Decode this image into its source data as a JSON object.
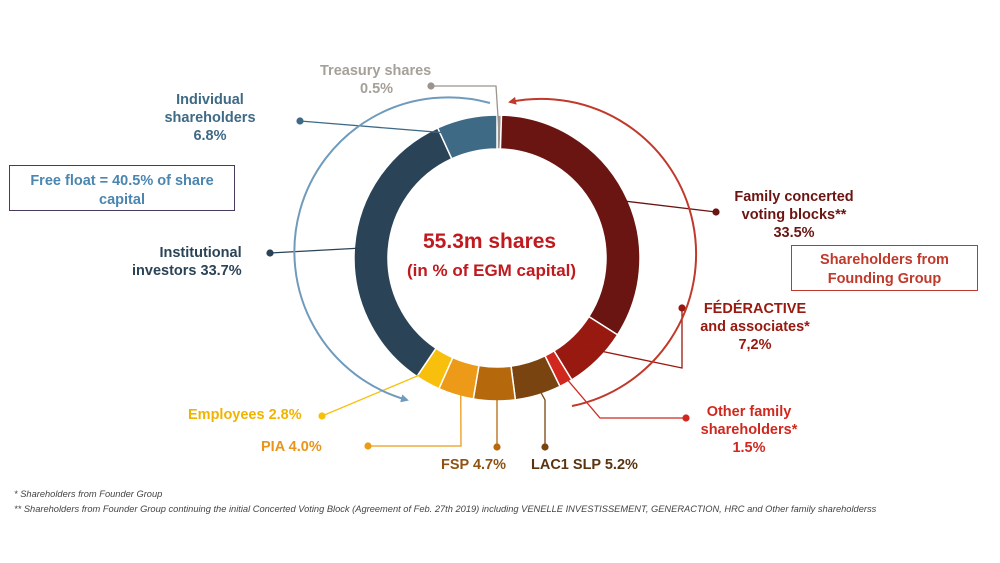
{
  "chart_data": {
    "type": "donut",
    "center_text": [
      "55.3m shares",
      "(in % of EGM capital)"
    ],
    "unit": "%",
    "slices": [
      {
        "key": "treasury",
        "label": "Treasury shares",
        "display": "0.5%",
        "value": 0.5,
        "color": "#9a948c"
      },
      {
        "key": "family_blocks",
        "label": "Family concerted voting blocks**",
        "display": "33.5%",
        "value": 33.5,
        "color": "#6b1512"
      },
      {
        "key": "federactive",
        "label": "FÉDÉRACTIVE and associates*",
        "display": "7,2%",
        "value": 7.2,
        "color": "#97190f"
      },
      {
        "key": "other_family",
        "label": "Other family shareholders*",
        "display": "1.5%",
        "value": 1.5,
        "color": "#d0281e"
      },
      {
        "key": "lac1",
        "label": "LAC1 SLP",
        "display": "5.2%",
        "value": 5.2,
        "color": "#7a4410"
      },
      {
        "key": "fsp",
        "label": "FSP",
        "display": "4.7%",
        "value": 4.7,
        "color": "#b6690c"
      },
      {
        "key": "pia",
        "label": "PIA",
        "display": "4.0%",
        "value": 4.0,
        "color": "#ec9a18"
      },
      {
        "key": "employees",
        "label": "Employees",
        "display": "2.8%",
        "value": 2.8,
        "color": "#f8bf0c"
      },
      {
        "key": "institutional",
        "label": "Institutional investors",
        "display": "33.7%",
        "value": 33.7,
        "color": "#2b4357"
      },
      {
        "key": "individual",
        "label": "Individual shareholders",
        "display": "6.8%",
        "value": 6.8,
        "color": "#3f6a86"
      }
    ],
    "groups": [
      {
        "label": "Free float  = 40.5% of share capital",
        "color": "#6f9bbd"
      },
      {
        "label": "Shareholders from Founding Group",
        "color": "#c0392b"
      }
    ]
  },
  "labels": {
    "treasury": {
      "l1": "Treasury shares",
      "l2": "0.5%"
    },
    "individual": {
      "l1": "Individual",
      "l2": "shareholders",
      "l3": "6.8%"
    },
    "institutional": {
      "l1": "Institutional",
      "l2": "investors 33.7%"
    },
    "employees": "Employees 2.8%",
    "pia": "PIA 4.0%",
    "fsp": "FSP 4.7%",
    "lac1": "LAC1 SLP 5.2%",
    "family_blocks": {
      "l1": "Family concerted",
      "l2": "voting blocks**",
      "l3": "33.5%"
    },
    "federactive": {
      "l1": "FÉDÉRACTIVE",
      "l2": "and associates*",
      "l3": "7,2%"
    },
    "other_family": {
      "l1": "Other family",
      "l2": "shareholders*",
      "l3": "1.5%"
    }
  },
  "boxes": {
    "free_float": {
      "l1": "Free float  = 40.5% of share",
      "l2": "capital"
    },
    "founding": {
      "l1": "Shareholders from",
      "l2": "Founding Group"
    }
  },
  "footnotes": [
    "*  Shareholders from Founder Group",
    "** Shareholders from Founder Group continuing the initial Concerted Voting Block (Agreement of Feb. 27th 2019) including VENELLE INVESTISSEMENT, GENERACTION, HRC and Other family shareholderss"
  ]
}
